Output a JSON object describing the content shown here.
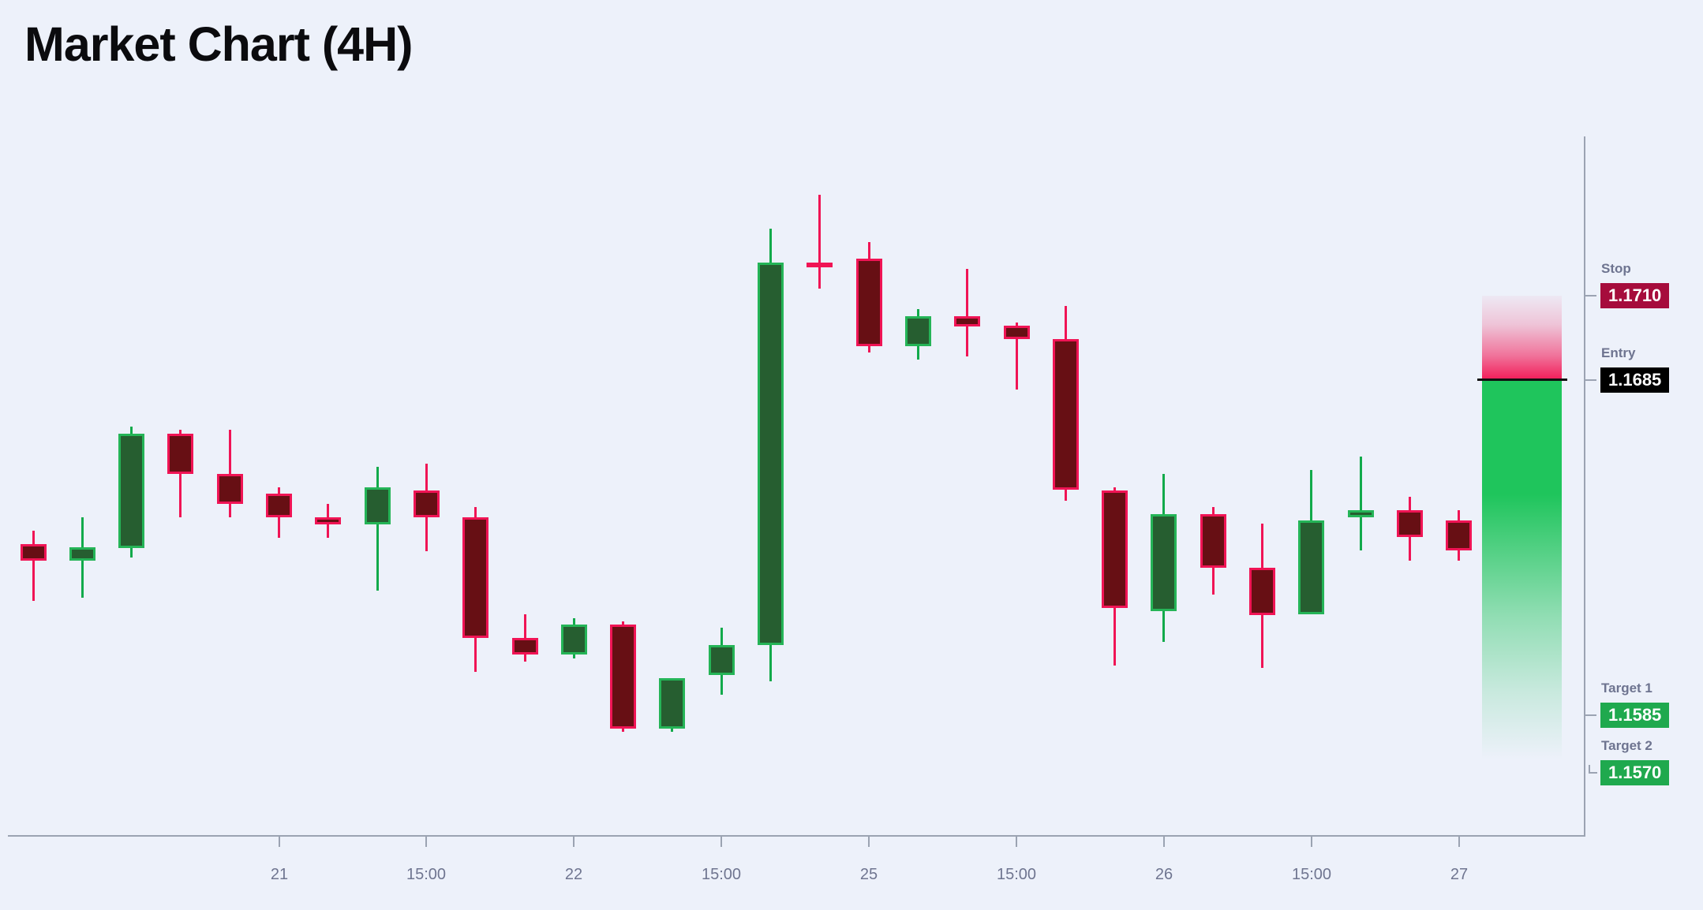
{
  "title": "Market Chart (4H)",
  "levels": {
    "stop": {
      "label": "Stop",
      "value": "1.1710"
    },
    "entry": {
      "label": "Entry",
      "value": "1.1685"
    },
    "target1": {
      "label": "Target 1",
      "value": "1.1585"
    },
    "target2": {
      "label": "Target 2",
      "value": "1.1570"
    }
  },
  "colors": {
    "background": "#edf1fa",
    "title_text": "#0b0b0e",
    "muted_label": "#6e7490",
    "axis_line": "#9ba3b2",
    "axis_label": "#6f7590",
    "bull_border": "#25b457",
    "bull_fill": "#265e30",
    "bull_wick": "#12aa4b",
    "bear_border": "#f01455",
    "bear_fill": "#670f14",
    "bear_wick": "#f01455",
    "stop_badge_bg": "#a60c3c",
    "entry_badge_bg": "#000000",
    "target_badge_bg": "#1fa94e",
    "badge_text": "#ffffff",
    "risk_zone_color": "#f2215c",
    "reward_zone_color": "#1fc55c",
    "entry_line": "#111111"
  },
  "chart_data": {
    "type": "candlestick",
    "title": "Market Chart (4H)",
    "timeframe": "4H",
    "price_levels": {
      "stop": 1.171,
      "entry": 1.1685,
      "target1": 1.1585,
      "target2": 1.157
    },
    "y_range": [
      1.156,
      1.1745
    ],
    "x_tick_labels": [
      "21",
      "15:00",
      "22",
      "15:00",
      "25",
      "15:00",
      "26",
      "15:00",
      "27"
    ],
    "x_tick_candle_indices": [
      5,
      8,
      11,
      14,
      17,
      20,
      23,
      26,
      29
    ],
    "candles_ohlc": [
      [
        1.1636,
        1.164,
        1.1619,
        1.1631
      ],
      [
        1.1631,
        1.1644,
        1.162,
        1.1635
      ],
      [
        1.1635,
        1.1671,
        1.1632,
        1.1669
      ],
      [
        1.1669,
        1.167,
        1.1644,
        1.1657
      ],
      [
        1.1657,
        1.167,
        1.1644,
        1.1648
      ],
      [
        1.1651,
        1.1653,
        1.1638,
        1.1644
      ],
      [
        1.1644,
        1.1648,
        1.1638,
        1.1642
      ],
      [
        1.1642,
        1.1659,
        1.1622,
        1.1653
      ],
      [
        1.1652,
        1.166,
        1.1634,
        1.1644
      ],
      [
        1.1644,
        1.1647,
        1.1598,
        1.1608
      ],
      [
        1.1608,
        1.1615,
        1.1601,
        1.1603
      ],
      [
        1.1603,
        1.1614,
        1.1602,
        1.1612
      ],
      [
        1.1612,
        1.1613,
        1.158,
        1.1581
      ],
      [
        1.1581,
        1.1596,
        1.158,
        1.1596
      ],
      [
        1.1597,
        1.1611,
        1.1591,
        1.1606
      ],
      [
        1.1606,
        1.173,
        1.1595,
        1.172
      ],
      [
        1.172,
        1.174,
        1.1712,
        1.1719
      ],
      [
        1.1721,
        1.1726,
        1.1693,
        1.1695
      ],
      [
        1.1695,
        1.1706,
        1.1691,
        1.1704
      ],
      [
        1.1704,
        1.1718,
        1.1692,
        1.1701
      ],
      [
        1.1701,
        1.1702,
        1.1682,
        1.1697
      ],
      [
        1.1697,
        1.1707,
        1.1649,
        1.1652
      ],
      [
        1.1652,
        1.1653,
        1.16,
        1.1617
      ],
      [
        1.1616,
        1.1657,
        1.1607,
        1.1645
      ],
      [
        1.1645,
        1.1647,
        1.1621,
        1.1629
      ],
      [
        1.1629,
        1.1642,
        1.1599,
        1.1615
      ],
      [
        1.1615,
        1.1658,
        1.1615,
        1.1643
      ],
      [
        1.1644,
        1.1662,
        1.1634,
        1.1646
      ],
      [
        1.1646,
        1.165,
        1.1631,
        1.1638
      ],
      [
        1.1643,
        1.1646,
        1.1631,
        1.1634
      ]
    ]
  }
}
